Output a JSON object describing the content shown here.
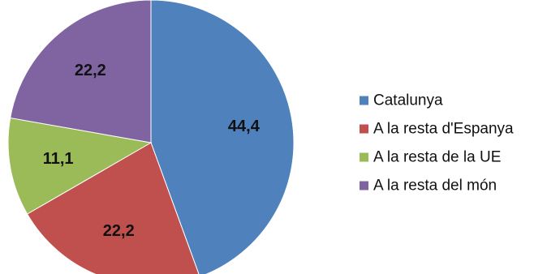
{
  "chart_data": {
    "type": "pie",
    "categories": [
      "Catalunya",
      "A la resta d'Espanya",
      "A la resta de la UE",
      "A la resta del món"
    ],
    "values": [
      44.4,
      22.2,
      11.1,
      22.2
    ],
    "data_labels": [
      "44,4",
      "22,2",
      "11,1",
      "22,2"
    ],
    "colors": [
      "#4F81BD",
      "#C0504D",
      "#9BBB59",
      "#8064A2"
    ],
    "start_angle_deg": 0,
    "direction": "clockwise",
    "legend_position": "right",
    "title": ""
  }
}
